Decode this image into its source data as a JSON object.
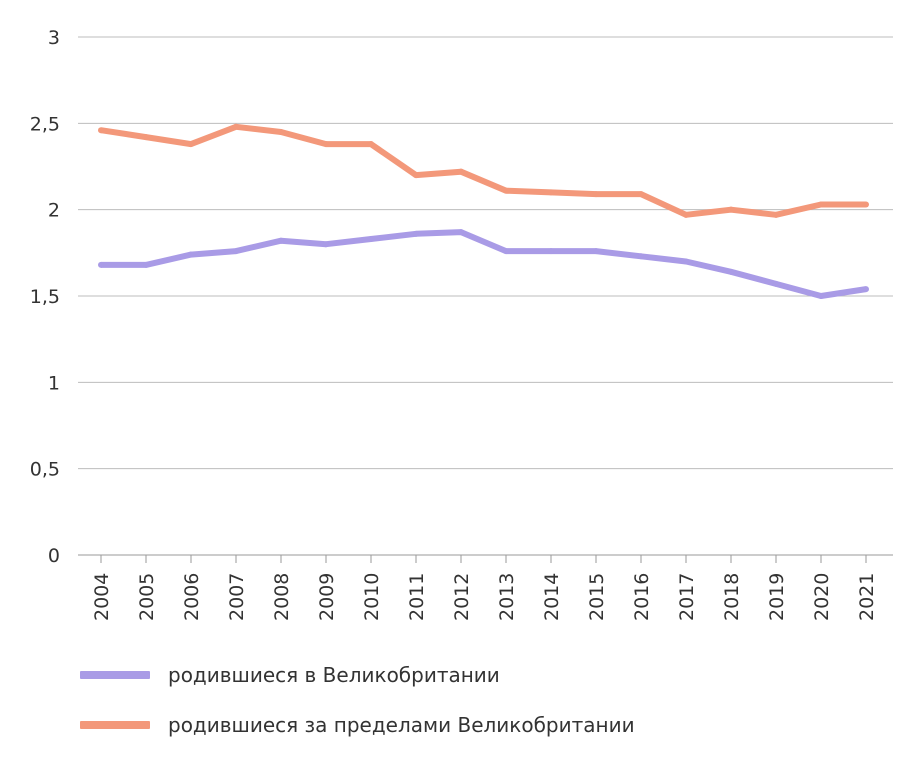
{
  "chart_data": {
    "type": "line",
    "title": "",
    "xlabel": "",
    "ylabel": "",
    "x": [
      "2004",
      "2005",
      "2006",
      "2007",
      "2008",
      "2009",
      "2010",
      "2011",
      "2012",
      "2013",
      "2014",
      "2015",
      "2016",
      "2017",
      "2018",
      "2019",
      "2020",
      "2021"
    ],
    "ylim": [
      0,
      3
    ],
    "yticks": [
      "0",
      "0,5",
      "1",
      "1,5",
      "2",
      "2,5",
      "3"
    ],
    "ytick_values": [
      0,
      0.5,
      1,
      1.5,
      2,
      2.5,
      3
    ],
    "grid": true,
    "legend_position": "bottom-left",
    "series": [
      {
        "name": "родившиеся в Великобритании",
        "color": "#a99be6",
        "values": [
          1.68,
          1.68,
          1.74,
          1.76,
          1.82,
          1.8,
          1.83,
          1.86,
          1.87,
          1.76,
          1.76,
          1.76,
          1.73,
          1.7,
          1.64,
          1.57,
          1.5,
          1.54
        ]
      },
      {
        "name": "родившиеся за пределами Великобритании",
        "color": "#f3987a",
        "values": [
          2.46,
          2.42,
          2.38,
          2.48,
          2.45,
          2.38,
          2.38,
          2.2,
          2.22,
          2.11,
          2.1,
          2.09,
          2.09,
          1.97,
          2.0,
          1.97,
          2.03,
          2.03
        ]
      }
    ]
  }
}
